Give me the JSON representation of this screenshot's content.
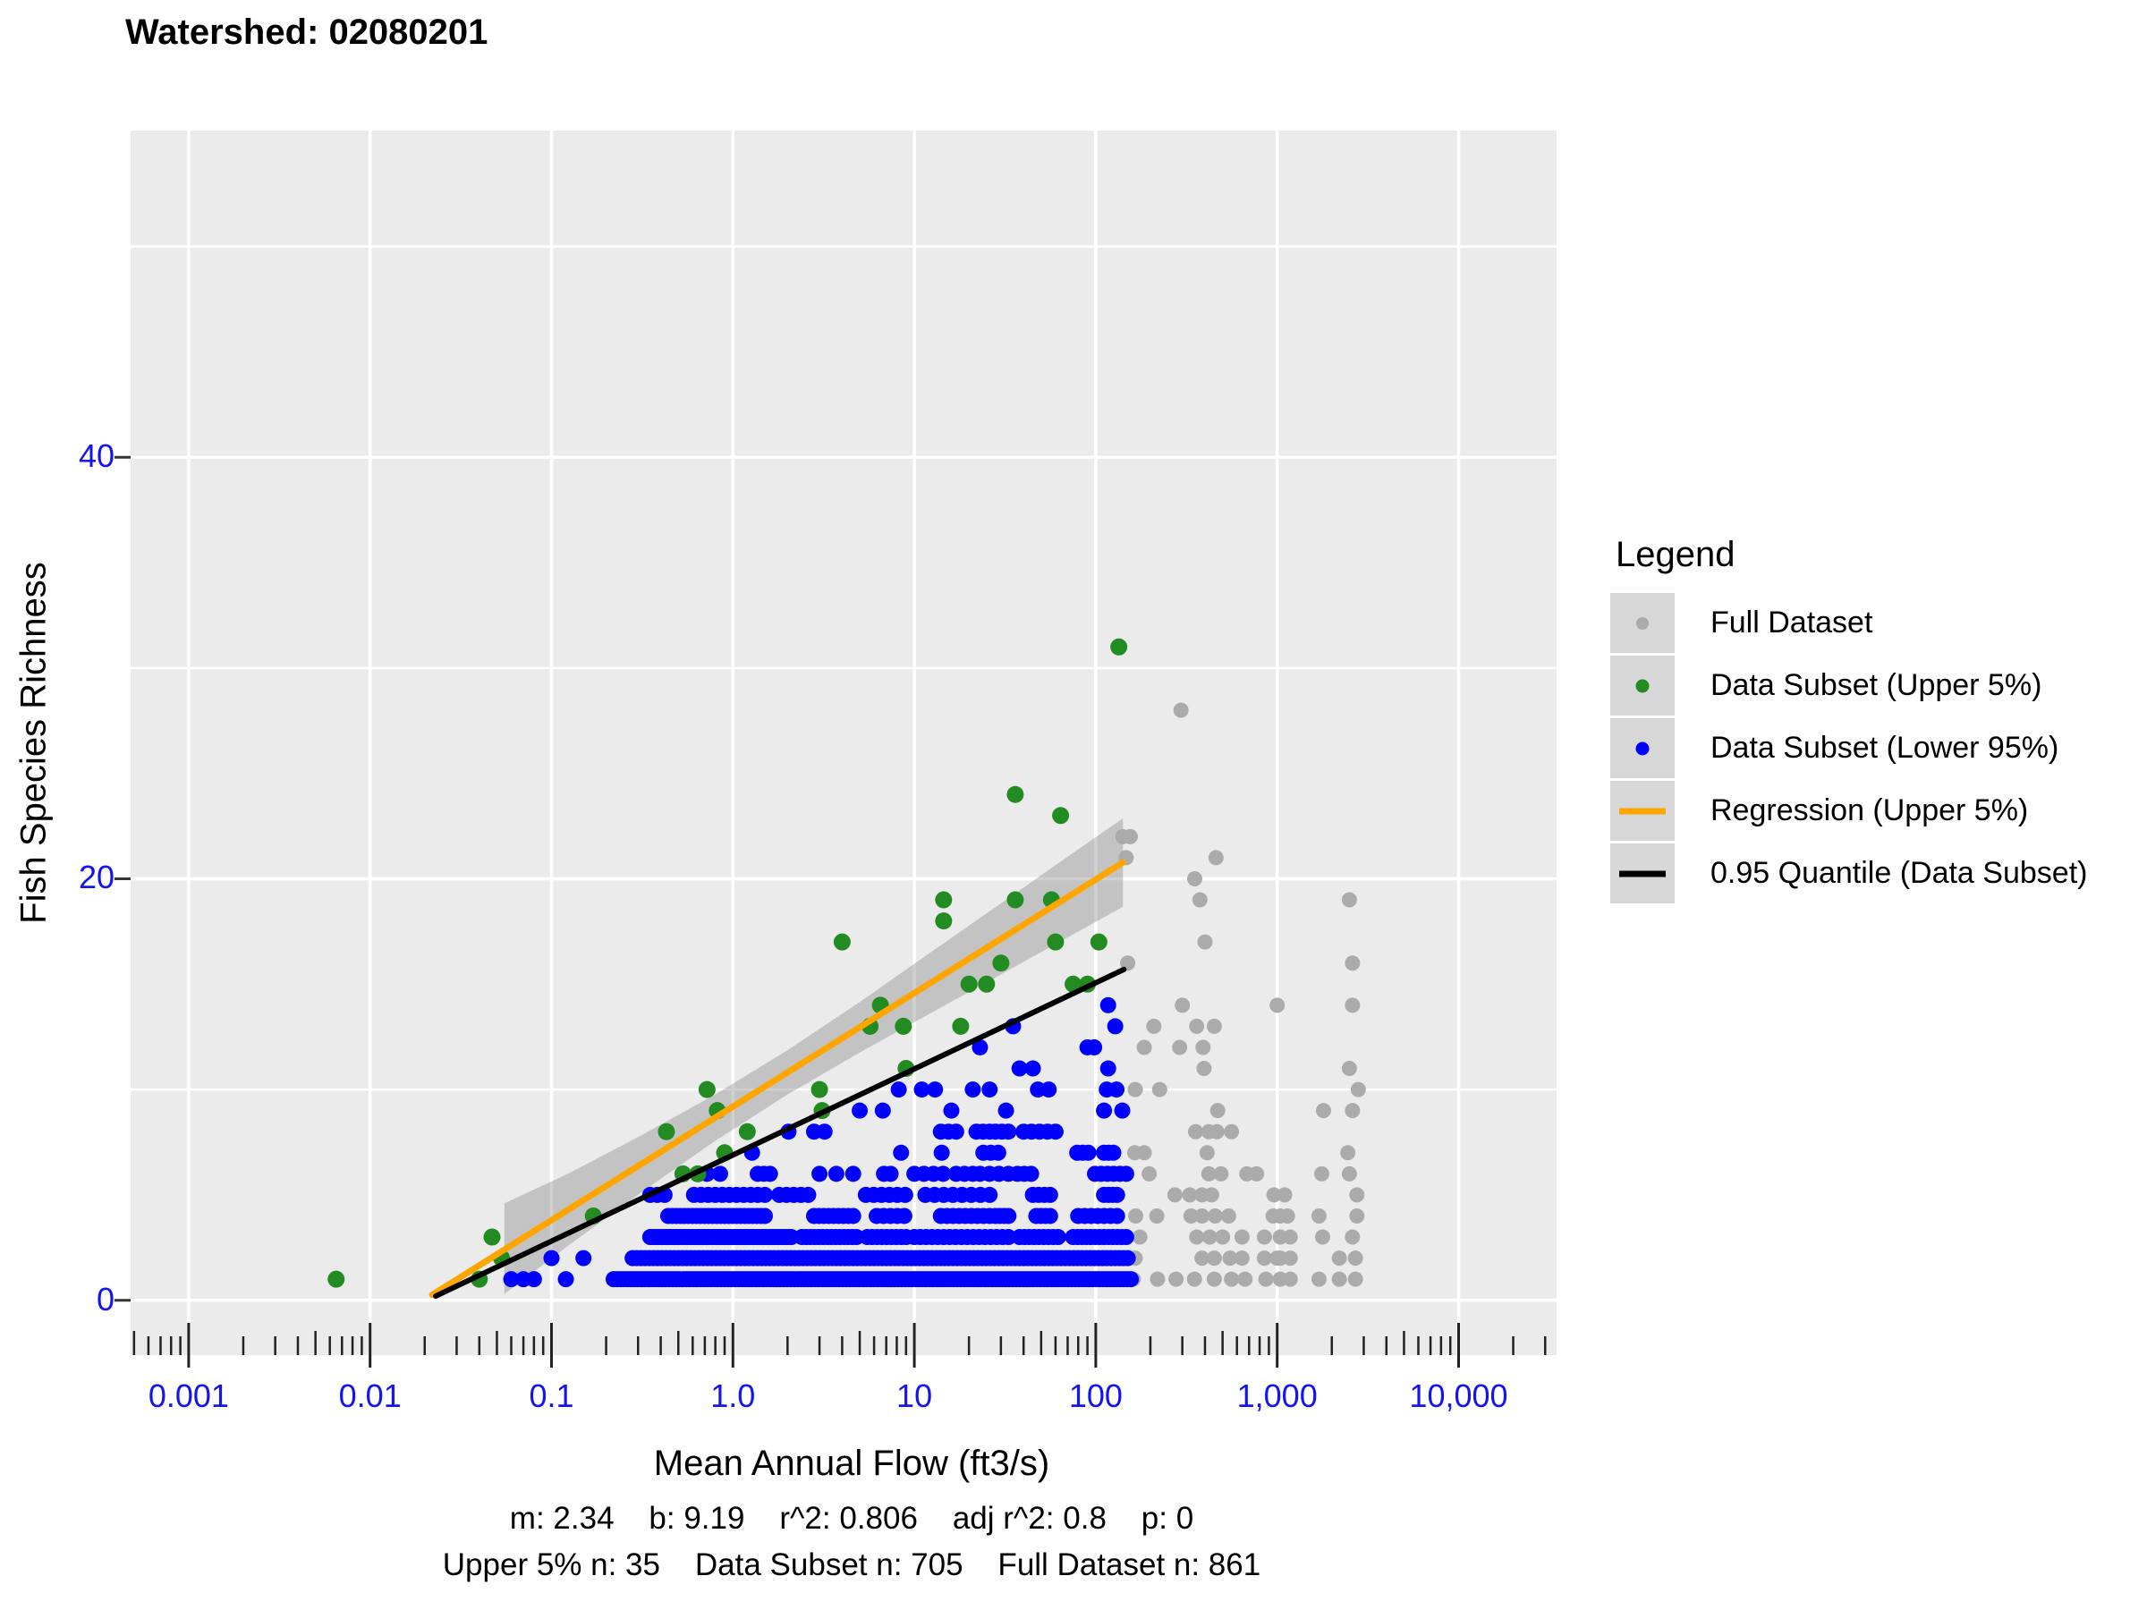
{
  "title": "Watershed: 02080201",
  "axes": {
    "x_title": "Mean Annual Flow (ft3/s)",
    "y_title": "Fish Species Richness",
    "tick_label_color": "#1414F0"
  },
  "stats": {
    "line1": "m: 2.34    b: 9.19    r^2: 0.806    adj r^2: 0.8    p: 0",
    "line2": "Upper 5% n: 35    Data Subset n: 705    Full Dataset n: 861",
    "m": 2.34,
    "b": 9.19,
    "r2": 0.806,
    "adj_r2": 0.8,
    "p": 0,
    "upper5_n": 35,
    "data_subset_n": 705,
    "full_dataset_n": 861
  },
  "legend": {
    "title": "Legend",
    "entries": [
      {
        "label": "Full Dataset",
        "glyph": "dot",
        "color": "#ABABAB",
        "size": 14
      },
      {
        "label": "Data Subset (Upper 5%)",
        "glyph": "dot",
        "color": "#228B22",
        "size": 15
      },
      {
        "label": "Data Subset (Lower 95%)",
        "glyph": "dot",
        "color": "#0000FF",
        "size": 15
      },
      {
        "label": "Regression (Upper 5%)",
        "glyph": "line",
        "color": "#FFA500"
      },
      {
        "label": "0.95 Quantile (Data Subset)",
        "glyph": "line",
        "color": "#000000"
      }
    ]
  },
  "chart_data": {
    "type": "scatter",
    "title": "Watershed: 02080201",
    "xlabel": "Mean Annual Flow (ft3/s)",
    "ylabel": "Fish Species Richness",
    "x_scale": "log10",
    "grid": "on",
    "panel_bg": "#EBEBEB",
    "x_ticks": [
      {
        "label": "0.001",
        "value": 0.001
      },
      {
        "label": "0.01",
        "value": 0.01
      },
      {
        "label": "0.1",
        "value": 0.1
      },
      {
        "label": "1.0",
        "value": 1.0
      },
      {
        "label": "10",
        "value": 10
      },
      {
        "label": "100",
        "value": 100
      },
      {
        "label": "1,000",
        "value": 1000
      },
      {
        "label": "10,000",
        "value": 10000
      }
    ],
    "y_ticks": [
      {
        "label": "0",
        "value": 0
      },
      {
        "label": "20",
        "value": 20
      },
      {
        "label": "40",
        "value": 40
      }
    ],
    "y_minor_gridlines": [
      10,
      30,
      50
    ],
    "xlim_log10": [
      -3.32,
      4.54
    ],
    "ylim": [
      -2.6,
      55.5
    ],
    "series": [
      {
        "name": "Full Dataset",
        "color": "#ABABAB",
        "marker_radius": 8.5,
        "points": [
          [
            295,
            28
          ],
          [
            141,
            22
          ],
          [
            155,
            22
          ],
          [
            147,
            21
          ],
          [
            460,
            21
          ],
          [
            351,
            20
          ],
          [
            375,
            19
          ],
          [
            2500,
            19
          ],
          [
            400,
            17
          ],
          [
            150,
            16
          ],
          [
            2600,
            16
          ],
          [
            300,
            14
          ],
          [
            1000,
            14
          ],
          [
            2600,
            14
          ],
          [
            209,
            13
          ],
          [
            360,
            13
          ],
          [
            450,
            13
          ],
          [
            185,
            12
          ],
          [
            290,
            12
          ],
          [
            390,
            12
          ],
          [
            395,
            11
          ],
          [
            2500,
            11
          ],
          [
            165,
            10
          ],
          [
            225,
            10
          ],
          [
            2800,
            10
          ],
          [
            470,
            9
          ],
          [
            1800,
            9
          ],
          [
            2600,
            9
          ],
          [
            355,
            8
          ],
          [
            420,
            8
          ],
          [
            465,
            8
          ],
          [
            560,
            8
          ],
          [
            164,
            7
          ],
          [
            185,
            7
          ],
          [
            411,
            7
          ],
          [
            2450,
            7
          ],
          [
            148,
            6
          ],
          [
            197,
            6
          ],
          [
            420,
            6
          ],
          [
            490,
            6
          ],
          [
            680,
            6
          ],
          [
            770,
            6
          ],
          [
            1760,
            6
          ],
          [
            2500,
            6
          ],
          [
            273,
            5
          ],
          [
            330,
            5
          ],
          [
            385,
            5
          ],
          [
            435,
            5
          ],
          [
            960,
            5
          ],
          [
            1100,
            5
          ],
          [
            2750,
            5
          ],
          [
            166,
            4
          ],
          [
            217,
            4
          ],
          [
            335,
            4
          ],
          [
            385,
            4
          ],
          [
            455,
            4
          ],
          [
            540,
            4
          ],
          [
            950,
            4
          ],
          [
            1040,
            4
          ],
          [
            1140,
            4
          ],
          [
            1700,
            4
          ],
          [
            2750,
            4
          ],
          [
            148,
            3
          ],
          [
            175,
            3
          ],
          [
            360,
            3
          ],
          [
            425,
            3
          ],
          [
            500,
            3
          ],
          [
            640,
            3
          ],
          [
            850,
            3
          ],
          [
            1040,
            3
          ],
          [
            1180,
            3
          ],
          [
            1780,
            3
          ],
          [
            2600,
            3
          ],
          [
            165,
            2
          ],
          [
            385,
            2
          ],
          [
            450,
            2
          ],
          [
            550,
            2
          ],
          [
            640,
            2
          ],
          [
            850,
            2
          ],
          [
            1000,
            2
          ],
          [
            1040,
            2
          ],
          [
            1180,
            2
          ],
          [
            2200,
            2
          ],
          [
            2700,
            2
          ],
          [
            161,
            1
          ],
          [
            219,
            1
          ],
          [
            277,
            1
          ],
          [
            350,
            1
          ],
          [
            450,
            1
          ],
          [
            560,
            1
          ],
          [
            665,
            1
          ],
          [
            866,
            1
          ],
          [
            1040,
            1
          ],
          [
            1180,
            1
          ],
          [
            1700,
            1
          ],
          [
            2200,
            1
          ],
          [
            2700,
            1
          ]
        ]
      },
      {
        "name": "Data Subset (Lower 95%)",
        "color": "#0000FF",
        "marker_radius": 9,
        "points": [
          [
            0.06,
            1
          ],
          [
            0.07,
            1
          ],
          [
            0.08,
            1
          ],
          [
            0.12,
            1
          ],
          [
            0.1,
            2
          ],
          [
            0.15,
            2
          ],
          [
            5,
            9
          ],
          [
            6.7,
            9
          ],
          [
            16,
            9
          ],
          [
            32,
            9
          ],
          [
            111,
            9
          ],
          [
            140,
            9
          ],
          [
            8.2,
            10
          ],
          [
            11,
            10
          ],
          [
            13,
            10
          ],
          [
            21,
            10
          ],
          [
            26,
            10
          ],
          [
            48,
            10
          ],
          [
            55,
            10
          ],
          [
            115,
            10
          ],
          [
            130,
            10
          ],
          [
            38,
            11
          ],
          [
            45,
            11
          ],
          [
            117,
            11
          ],
          [
            23,
            12
          ],
          [
            90,
            12
          ],
          [
            98,
            12
          ],
          [
            35,
            13
          ],
          [
            128,
            13
          ],
          [
            117,
            14
          ]
        ],
        "bands": [
          {
            "y": 1,
            "segments": [
              [
                0.22,
                156,
                150
              ]
            ]
          },
          {
            "y": 2,
            "segments": [
              [
                0.28,
                150,
                120
              ]
            ]
          },
          {
            "y": 3,
            "segments": [
              [
                0.35,
                2.1,
                45
              ],
              [
                2.4,
                4.8,
                14
              ],
              [
                5.5,
                9,
                9
              ],
              [
                10,
                33,
                17
              ],
              [
                38,
                62,
                9
              ],
              [
                75,
                147,
                13
              ]
            ]
          },
          {
            "y": 4,
            "segments": [
              [
                0.44,
                1.5,
                25
              ],
              [
                2.8,
                4.6,
                9
              ],
              [
                6.2,
                8.8,
                5
              ],
              [
                14,
                26,
                9
              ],
              [
                28,
                33,
                4
              ],
              [
                47,
                56,
                4
              ],
              [
                80,
                131,
                7
              ]
            ]
          },
          {
            "y": 5,
            "segments": [
              [
                0.35,
                0.42,
                3
              ],
              [
                0.61,
                1.5,
                11
              ],
              [
                1.8,
                2.6,
                5
              ],
              [
                5.4,
                8.9,
                6
              ],
              [
                11.5,
                26,
                8
              ],
              [
                45,
                56,
                4
              ],
              [
                111,
                131,
                4
              ]
            ]
          },
          {
            "y": 6,
            "segments": [
              [
                0.72,
                0.85,
                2
              ],
              [
                1.37,
                1.6,
                3
              ],
              [
                3,
                4.6,
                3
              ],
              [
                6.8,
                7.4,
                2
              ],
              [
                10,
                14.4,
                4
              ],
              [
                17,
                21,
                3
              ],
              [
                23,
                33,
                4
              ],
              [
                37,
                44,
                3
              ],
              [
                99,
                147,
                6
              ]
            ]
          },
          {
            "y": 7,
            "segments": [
              [
                1.25,
                1.3,
                1
              ],
              [
                8.4,
                8.5,
                1
              ],
              [
                14,
                14.3,
                1
              ],
              [
                24,
                29,
                3
              ],
              [
                79,
                91,
                3
              ],
              [
                111,
                125,
                3
              ]
            ]
          },
          {
            "y": 8,
            "segments": [
              [
                2.0,
                2.05,
                1
              ],
              [
                2.8,
                3.2,
                2
              ],
              [
                14,
                17,
                3
              ],
              [
                22,
                26,
                3
              ],
              [
                28,
                33,
                3
              ],
              [
                40,
                60,
                5
              ]
            ]
          }
        ]
      },
      {
        "name": "Data Subset (Upper 5%)",
        "color": "#228B22",
        "marker_radius": 9.5,
        "points": [
          [
            0.0065,
            1
          ],
          [
            0.04,
            1
          ],
          [
            0.053,
            2
          ],
          [
            0.047,
            3
          ],
          [
            0.17,
            4
          ],
          [
            0.53,
            6
          ],
          [
            0.64,
            6
          ],
          [
            0.9,
            7
          ],
          [
            0.43,
            8
          ],
          [
            1.2,
            8
          ],
          [
            0.82,
            9
          ],
          [
            3.1,
            9
          ],
          [
            0.72,
            10
          ],
          [
            3,
            10
          ],
          [
            9,
            11
          ],
          [
            5.7,
            13
          ],
          [
            8.7,
            13
          ],
          [
            18,
            13
          ],
          [
            6.5,
            14
          ],
          [
            20,
            15
          ],
          [
            25,
            15
          ],
          [
            75,
            15
          ],
          [
            90,
            15
          ],
          [
            30,
            16
          ],
          [
            4,
            17
          ],
          [
            60,
            17
          ],
          [
            104,
            17
          ],
          [
            14.5,
            18
          ],
          [
            14.5,
            19
          ],
          [
            36,
            19
          ],
          [
            57,
            19
          ],
          [
            64,
            23
          ],
          [
            36,
            24
          ],
          [
            134,
            31
          ]
        ]
      }
    ],
    "regression_upper5": {
      "name": "Regression (Upper 5%)",
      "color": "#FFA500",
      "equation": "richness = 2.34*ln(flow) + 9.19",
      "m": 2.34,
      "b": 9.19,
      "x_start": 0.022,
      "x_end": 141
    },
    "quantile_095": {
      "name": "0.95 Quantile (Data Subset)",
      "color": "#000000",
      "x_start": 0.023,
      "y_start": 0.2,
      "x_end": 143,
      "y_end": 15.7
    },
    "ci_band": {
      "color": "rgba(120,120,120,0.35)",
      "points_log10x_center_half": [
        [
          -1.26,
          2.45,
          2.15
        ],
        [
          -0.9,
          4.34,
          1.7
        ],
        [
          -0.5,
          6.5,
          1.35
        ],
        [
          -0.1,
          8.65,
          1.1
        ],
        [
          0.3,
          10.81,
          1.05
        ],
        [
          0.7,
          12.96,
          1.2
        ],
        [
          1.1,
          15.12,
          1.45
        ],
        [
          1.5,
          17.27,
          1.7
        ],
        [
          1.9,
          19.43,
          1.95
        ],
        [
          2.15,
          20.77,
          2.1
        ]
      ]
    }
  }
}
